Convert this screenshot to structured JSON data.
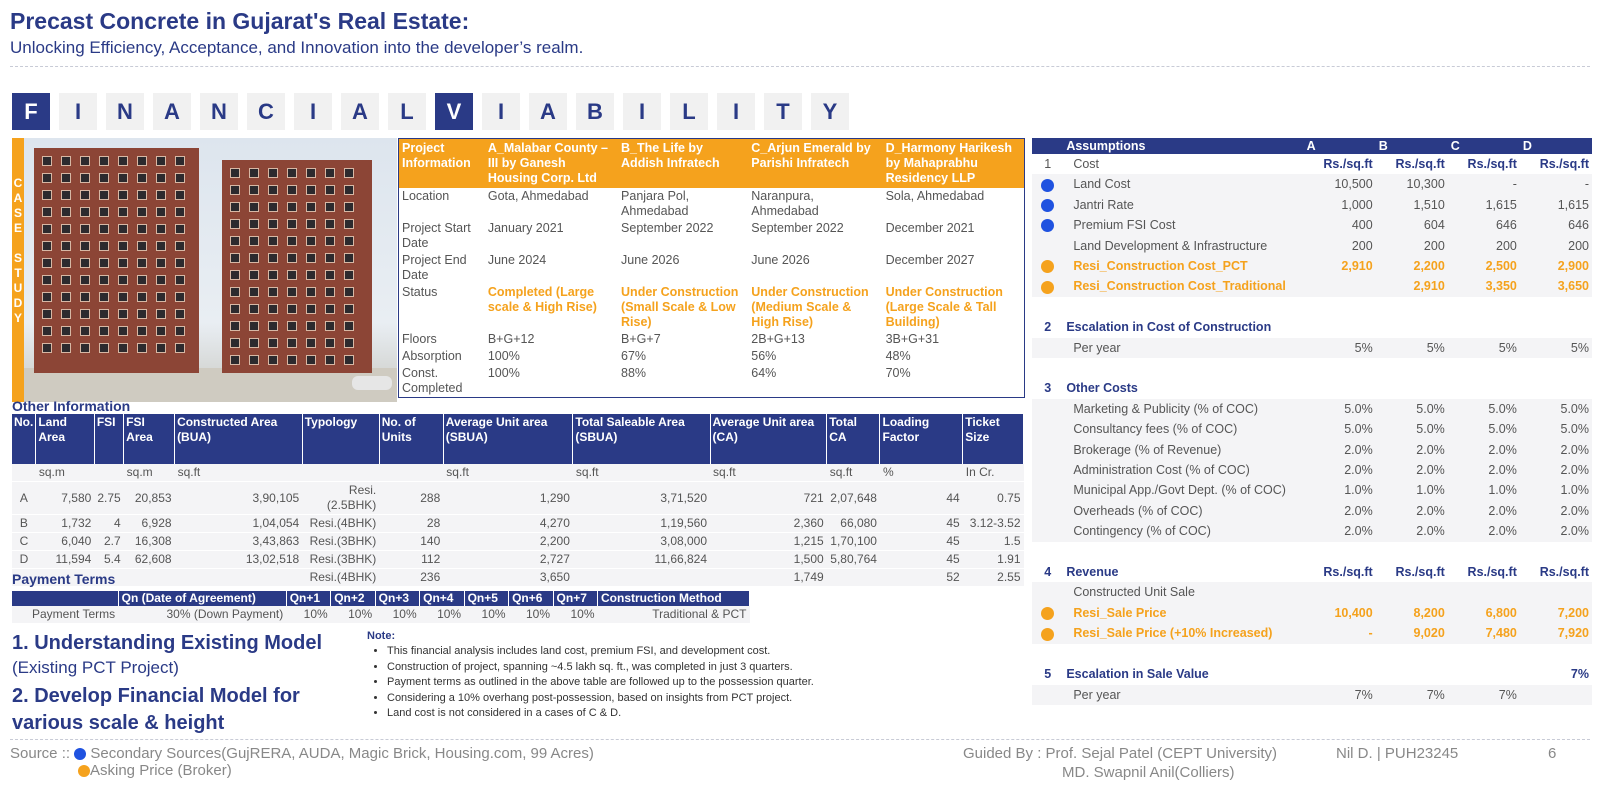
{
  "header": {
    "title": "Precast Concrete in Gujarat's Real Estate:",
    "subtitle": "Unlocking Efficiency, Acceptance, and Innovation into the developer’s realm."
  },
  "banner": {
    "letters": [
      "F",
      "I",
      "N",
      "A",
      "N",
      "C",
      "I",
      "A",
      "L",
      "V",
      "I",
      "A",
      "B",
      "I",
      "L",
      "I",
      "T",
      "Y"
    ],
    "highlight": [
      0,
      9
    ]
  },
  "case_study_label": [
    "C",
    "A",
    "S",
    "E",
    "",
    "S",
    "T",
    "U",
    "D",
    "Y"
  ],
  "project_table": {
    "header": [
      "Project Information",
      "A_Malabar County – III by Ganesh Housing Corp. Ltd",
      "B_The Life by Addish Infratech",
      "C_Arjun Emerald by Parishi Infratech",
      "D_Harmony Harikesh by Mahaprabhu Residency LLP"
    ],
    "rows": [
      {
        "label": "Location",
        "values": [
          "Gota, Ahmedabad",
          "Panjara Pol, Ahmedabad",
          "Naranpura, Ahmedabad",
          "Sola, Ahmedabad"
        ]
      },
      {
        "label": "Project Start Date",
        "values": [
          "January 2021",
          "September 2022",
          "September 2022",
          "December 2021"
        ]
      },
      {
        "label": "Project End Date",
        "values": [
          "June 2024",
          "June 2026",
          "June 2026",
          "December 2027"
        ]
      },
      {
        "label": "Status",
        "values": [
          "Completed (Large scale & High Rise)",
          "Under Construction (Small Scale & Low Rise)",
          "Under Construction (Medium Scale & High Rise)",
          "Under Construction (Large Scale & Tall Building)"
        ]
      },
      {
        "label": "Floors",
        "values": [
          "B+G+12",
          "B+G+7",
          "2B+G+13",
          "3B+G+31"
        ]
      },
      {
        "label": "Absorption",
        "values": [
          "100%",
          "67%",
          "56%",
          "48%"
        ]
      },
      {
        "label": "Const. Completed",
        "values": [
          "100%",
          "88%",
          "64%",
          "70%"
        ]
      }
    ]
  },
  "other_info": {
    "title": "Other Information",
    "headers": [
      "No.",
      "Land Area",
      "FSI",
      "FSI Area",
      "Constructed Area (BUA)",
      "Typology",
      "No. of Units",
      "Average Unit area (SBUA)",
      "Total Saleable Area (SBUA)",
      "Average Unit area (CA)",
      "Total CA",
      "Loading Factor",
      "Ticket Size"
    ],
    "units": [
      "",
      "sq.m",
      "",
      "sq.m",
      "sq.ft",
      "",
      "",
      "sq.ft",
      "sq.ft",
      "sq.ft",
      "sq.ft",
      "%",
      "In Cr."
    ],
    "rows": [
      [
        "A",
        "7,580",
        "2.75",
        "20,853",
        "3,90,105",
        "Resi.(2.5BHK)",
        "288",
        "1,290",
        "3,71,520",
        "721",
        "2,07,648",
        "44",
        "0.75"
      ],
      [
        "B",
        "1,732",
        "4",
        "6,928",
        "1,04,054",
        "Resi.(4BHK)",
        "28",
        "4,270",
        "1,19,560",
        "2,360",
        "66,080",
        "45",
        "3.12-3.52"
      ],
      [
        "C",
        "6,040",
        "2.7",
        "16,308",
        "3,43,863",
        "Resi.(3BHK)",
        "140",
        "2,200",
        "3,08,000",
        "1,215",
        "1,70,100",
        "45",
        "1.5"
      ],
      [
        "D",
        "11,594",
        "5.4",
        "62,608",
        "13,02,518",
        "Resi.(3BHK)",
        "112",
        "2,727",
        "11,66,824",
        "1,500",
        "5,80,764",
        "45",
        "1.91"
      ],
      [
        "",
        "",
        "",
        "",
        "",
        "Resi.(4BHK)",
        "236",
        "3,650",
        "",
        "1,749",
        "",
        "52",
        "2.55"
      ]
    ]
  },
  "payment_terms": {
    "title": "Payment Terms",
    "headers": [
      "",
      "Qn (Date of Agreement)",
      "Qn+1",
      "Qn+2",
      "Qn+3",
      "Qn+4",
      "Qn+5",
      "Qn+6",
      "Qn+7",
      "Construction Method"
    ],
    "row": [
      "Payment Terms",
      "30% (Down Payment)",
      "10%",
      "10%",
      "10%",
      "10%",
      "10%",
      "10%",
      "10%",
      "Traditional & PCT"
    ]
  },
  "points": {
    "p1": "1.   Understanding Existing Model",
    "p1_sub": "(Existing PCT Project)",
    "p2": "2. Develop Financial Model for various scale & height"
  },
  "note": {
    "title": "Note:",
    "items": [
      "This financial analysis includes land cost, premium FSI, and development cost.",
      "Construction of project, spanning ~4.5 lakh sq. ft., was completed in just 3 quarters.",
      "Payment terms as outlined in the above table are followed up to the possession quarter.",
      "Considering a 10% overhang post-possession, based on insights from PCT project.",
      "Land cost is not considered in a cases of C & D."
    ]
  },
  "assumptions": {
    "header": [
      "Assumptions",
      "A",
      "B",
      "C",
      "D"
    ],
    "rows": [
      {
        "kind": "unitrow",
        "no": "1",
        "label": "Cost",
        "dot": "",
        "vals": [
          "Rs./sq.ft",
          "Rs./sq.ft",
          "Rs./sq.ft",
          "Rs./sq.ft"
        ]
      },
      {
        "kind": "band",
        "no": "",
        "label": "Land Cost",
        "dot": "b",
        "vals": [
          "10,500",
          "10,300",
          "-",
          "-"
        ]
      },
      {
        "kind": "band",
        "no": "",
        "label": "Jantri Rate",
        "dot": "b",
        "vals": [
          "1,000",
          "1,510",
          "1,615",
          "1,615"
        ]
      },
      {
        "kind": "band",
        "no": "",
        "label": "Premium FSI Cost",
        "dot": "b",
        "vals": [
          "400",
          "604",
          "646",
          "646"
        ]
      },
      {
        "kind": "band",
        "no": "",
        "label": "Land Development & Infrastructure",
        "dot": "",
        "vals": [
          "200",
          "200",
          "200",
          "200"
        ]
      },
      {
        "kind": "orow band",
        "no": "",
        "label": "Resi_Construction Cost_PCT",
        "dot": "o",
        "vals": [
          "2,910",
          "2,200",
          "2,500",
          "2,900"
        ]
      },
      {
        "kind": "orow band",
        "no": "",
        "label": "Resi_Construction Cost_Traditional",
        "dot": "o",
        "vals": [
          "",
          "2,910",
          "3,350",
          "3,650"
        ]
      },
      {
        "kind": "",
        "no": "",
        "label": "",
        "dot": "",
        "vals": [
          "",
          "",
          "",
          ""
        ]
      },
      {
        "kind": "sec",
        "no": "2",
        "label": "Escalation in Cost of Construction",
        "dot": "",
        "vals": [
          "",
          "",
          "",
          ""
        ]
      },
      {
        "kind": "band",
        "no": "",
        "label": "Per year",
        "dot": "",
        "vals": [
          "5%",
          "5%",
          "5%",
          "5%"
        ]
      },
      {
        "kind": "",
        "no": "",
        "label": "",
        "dot": "",
        "vals": [
          "",
          "",
          "",
          ""
        ]
      },
      {
        "kind": "sec",
        "no": "3",
        "label": "Other Costs",
        "dot": "",
        "vals": [
          "",
          "",
          "",
          ""
        ]
      },
      {
        "kind": "band",
        "no": "",
        "label": "Marketing & Publicity (% of COC)",
        "dot": "",
        "vals": [
          "5.0%",
          "5.0%",
          "5.0%",
          "5.0%"
        ]
      },
      {
        "kind": "band",
        "no": "",
        "label": "Consultancy fees (% of COC)",
        "dot": "",
        "vals": [
          "5.0%",
          "5.0%",
          "5.0%",
          "5.0%"
        ]
      },
      {
        "kind": "band",
        "no": "",
        "label": "Brokerage (% of Revenue)",
        "dot": "",
        "vals": [
          "2.0%",
          "2.0%",
          "2.0%",
          "2.0%"
        ]
      },
      {
        "kind": "band",
        "no": "",
        "label": "Administration Cost (% of COC)",
        "dot": "",
        "vals": [
          "2.0%",
          "2.0%",
          "2.0%",
          "2.0%"
        ]
      },
      {
        "kind": "band",
        "no": "",
        "label": "Municipal App./Govt Dept. (% of COC)",
        "dot": "",
        "vals": [
          "1.0%",
          "1.0%",
          "1.0%",
          "1.0%"
        ]
      },
      {
        "kind": "band",
        "no": "",
        "label": "Overheads (% of COC)",
        "dot": "",
        "vals": [
          "2.0%",
          "2.0%",
          "2.0%",
          "2.0%"
        ]
      },
      {
        "kind": "band",
        "no": "",
        "label": "Contingency (% of COC)",
        "dot": "",
        "vals": [
          "2.0%",
          "2.0%",
          "2.0%",
          "2.0%"
        ]
      },
      {
        "kind": "",
        "no": "",
        "label": "",
        "dot": "",
        "vals": [
          "",
          "",
          "",
          ""
        ]
      },
      {
        "kind": "sec unitrow",
        "no": "4",
        "label": "Revenue",
        "dot": "",
        "vals": [
          "Rs./sq.ft",
          "Rs./sq.ft",
          "Rs./sq.ft",
          "Rs./sq.ft"
        ]
      },
      {
        "kind": "band",
        "no": "",
        "label": "Constructed Unit Sale",
        "dot": "",
        "vals": [
          "",
          "",
          "",
          ""
        ]
      },
      {
        "kind": "orow band",
        "no": "",
        "label": "Resi_Sale Price",
        "dot": "o",
        "vals": [
          "10,400",
          "8,200",
          "6,800",
          "7,200"
        ]
      },
      {
        "kind": "orow band",
        "no": "",
        "label": "Resi_Sale Price (+10% Increased)",
        "dot": "o",
        "vals": [
          "-",
          "9,020",
          "7,480",
          "7,920"
        ]
      },
      {
        "kind": "",
        "no": "",
        "label": "",
        "dot": "",
        "vals": [
          "",
          "",
          "",
          ""
        ]
      },
      {
        "kind": "sec",
        "no": "5",
        "label": "Escalation in Sale Value",
        "dot": "",
        "vals": [
          "",
          "",
          "",
          "7%"
        ]
      },
      {
        "kind": "band",
        "no": "",
        "label": "Per year",
        "dot": "",
        "vals": [
          "7%",
          "7%",
          "7%",
          ""
        ]
      }
    ]
  },
  "footer": {
    "source_label": "Source ::",
    "source1": "Secondary Sources(GujRERA, AUDA, Magic Brick, Housing.com, 99 Acres)",
    "source2": "Asking Price (Broker)",
    "guided": "Guided By : Prof. Sejal Patel (CEPT University)",
    "guided2": "MD. Swapnil Anil(Colliers)",
    "author": "Nil D. | PUH23245",
    "page": "6"
  },
  "colors": {
    "navy": "#2a3a86",
    "orange": "#f5a21d",
    "blue_dot": "#1f52e0"
  }
}
